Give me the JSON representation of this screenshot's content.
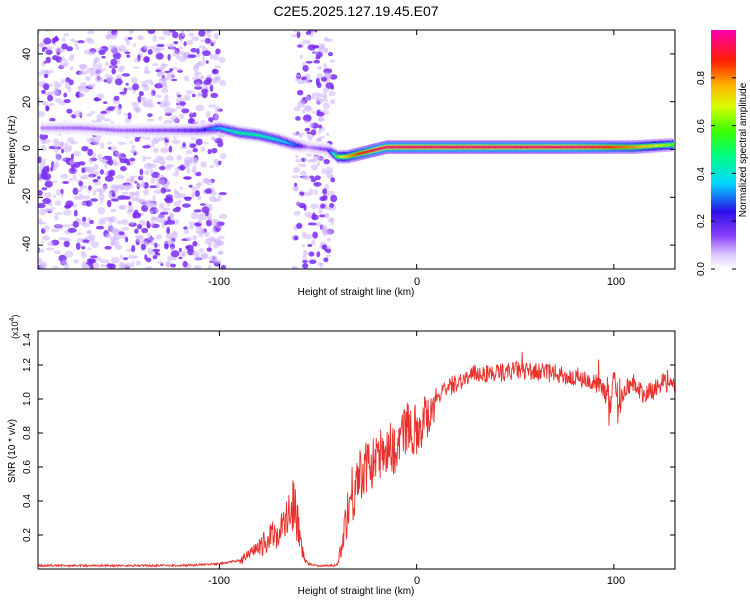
{
  "title": "C2E5.2025.127.19.45.E07",
  "top_panel": {
    "xlabel": "Height of straight line (km)",
    "ylabel": "Frequency (Hz)",
    "x_ticks": [
      "-100",
      "0",
      "100"
    ],
    "y_ticks": [
      "40",
      "20",
      "0",
      "-20",
      "-40"
    ],
    "colorbar_label": "Normalized spectral amplitude",
    "colorbar_ticks": [
      "0.0",
      "0.2",
      "0.4",
      "0.6",
      "0.8"
    ]
  },
  "bottom_panel": {
    "xlabel": "Height of straight line (km)",
    "ylabel": "SNR (10 * v/v)",
    "multiplier": "(x10",
    "multiplier_exp": "4",
    "multiplier_close": ")",
    "x_ticks": [
      "-100",
      "0",
      "100"
    ],
    "y_ticks": [
      "1.4",
      "1.2",
      "1.0",
      "0.8",
      "0.6",
      "0.4",
      "0.2"
    ]
  },
  "colors": {
    "trace": "#e8312c",
    "noise": "#8a3ffb"
  },
  "chart_data": [
    {
      "type": "heatmap",
      "title": "C2E5.2025.127.19.45.E07",
      "xlabel": "Height of straight line (km)",
      "ylabel": "Frequency (Hz)",
      "xlim": [
        -192,
        131
      ],
      "ylim": [
        -50,
        50
      ],
      "zlim": [
        0,
        1
      ],
      "colorbar_label": "Normalized spectral amplitude",
      "ridge": {
        "x": [
          -190,
          -170,
          -150,
          -125,
          -110,
          -100,
          -90,
          -80,
          -70,
          -62,
          -55,
          -45,
          -40,
          -35,
          -30,
          -25,
          -20,
          -15,
          -10,
          0,
          20,
          40,
          60,
          80,
          95,
          100,
          110,
          130
        ],
        "freq": [
          9,
          9,
          8,
          8,
          8,
          9,
          7,
          6,
          4,
          2,
          1,
          0,
          -3,
          -3,
          -2,
          -1,
          0,
          1,
          1,
          1,
          1,
          1,
          1,
          1,
          1,
          1,
          1,
          2
        ],
        "amplitude": [
          0.1,
          0.12,
          0.12,
          0.15,
          0.2,
          0.35,
          0.45,
          0.45,
          0.4,
          0.3,
          0.1,
          0.15,
          0.6,
          0.75,
          0.85,
          0.9,
          0.95,
          0.95,
          0.95,
          0.95,
          0.95,
          0.95,
          0.95,
          0.95,
          0.9,
          0.85,
          0.8,
          0.6
        ]
      },
      "noise_regions_km": [
        [
          -192,
          -98
        ],
        [
          -62,
          -42
        ]
      ]
    },
    {
      "type": "line",
      "xlabel": "Height of straight line (km)",
      "ylabel": "SNR (10 * v/v)",
      "xlim": [
        -192,
        131
      ],
      "ylim": [
        0,
        1.4
      ],
      "y_multiplier": 10000,
      "series": [
        {
          "x": [
            -192,
            -180,
            -160,
            -140,
            -120,
            -100,
            -90,
            -85,
            -80,
            -75,
            -70,
            -65,
            -63,
            -60,
            -58,
            -55,
            -50,
            -45,
            -42,
            -40,
            -38,
            -35,
            -30,
            -25,
            -20,
            -15,
            -10,
            -5,
            0,
            5,
            10,
            15,
            20,
            25,
            30,
            40,
            50,
            60,
            70,
            80,
            90,
            95,
            98,
            100,
            102,
            105,
            110,
            115,
            120,
            125,
            131
          ],
          "values": [
            0.02,
            0.02,
            0.02,
            0.02,
            0.02,
            0.03,
            0.05,
            0.08,
            0.12,
            0.18,
            0.22,
            0.3,
            0.4,
            0.25,
            0.1,
            0.03,
            0.02,
            0.02,
            0.02,
            0.03,
            0.15,
            0.35,
            0.55,
            0.6,
            0.65,
            0.72,
            0.7,
            0.85,
            0.82,
            0.9,
            1.02,
            1.05,
            1.1,
            1.12,
            1.15,
            1.15,
            1.17,
            1.16,
            1.15,
            1.12,
            1.1,
            1.05,
            0.95,
            1.15,
            0.95,
            1.05,
            1.1,
            1.02,
            1.05,
            1.1,
            1.07
          ]
        }
      ]
    }
  ]
}
